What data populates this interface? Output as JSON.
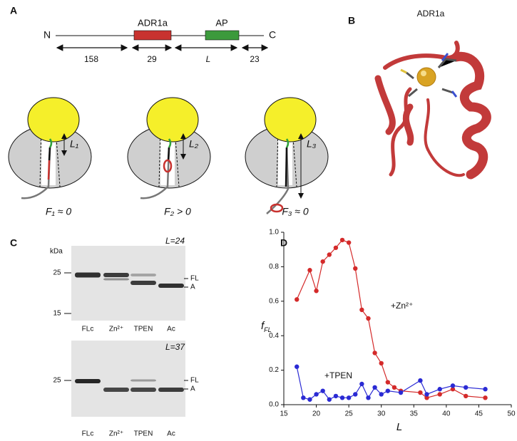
{
  "panel_a": {
    "label": "A",
    "n_term": "N",
    "c_term": "C",
    "domain_1": "ADR1a",
    "domain_2": "AP",
    "lengths": [
      "158",
      "29",
      "L",
      "23"
    ],
    "tunnel_labels": [
      "L₁",
      "L₂",
      "L₃"
    ],
    "force_labels": [
      "F₁ ≈ 0",
      "F₂ > 0",
      "F₃ ≈ 0"
    ]
  },
  "panel_b": {
    "label": "B",
    "title": "ADR1a"
  },
  "panel_c": {
    "label": "C",
    "unit": "kDa",
    "gels": [
      {
        "title": "L=24",
        "markers": [
          "25",
          "15"
        ],
        "bands": [
          "FL",
          "A"
        ],
        "lanes": [
          "FLc",
          "Zn²⁺",
          "TPEN",
          "Ac"
        ]
      },
      {
        "title": "L=37",
        "markers": [
          "25"
        ],
        "bands": [
          "FL",
          "A"
        ],
        "lanes": [
          "FLc",
          "Zn²⁺",
          "TPEN",
          "Ac"
        ]
      }
    ]
  },
  "panel_d": {
    "label": "D"
  },
  "chart_data": {
    "type": "line",
    "x_label": "L",
    "y_label": {
      "main": "f",
      "sub": "FL"
    },
    "xlim": [
      15,
      50
    ],
    "xticks": [
      15,
      20,
      25,
      30,
      35,
      40,
      45,
      50
    ],
    "ylim": [
      0,
      1.0
    ],
    "yticks": [
      {
        "value": 0,
        "label": "0.0"
      },
      0.2,
      0.4,
      0.6,
      0.8,
      {
        "value": 1.0,
        "label": "1.0"
      }
    ],
    "annotations": [
      "+Zn²⁺",
      "+TPEN"
    ],
    "series": [
      {
        "name": "+Zn²⁺",
        "color": "#d42a2a",
        "x": [
          17,
          19,
          20,
          21,
          22,
          23,
          24,
          25,
          26,
          27,
          28,
          29,
          30,
          31,
          32,
          33,
          36,
          37,
          39,
          41,
          43,
          46
        ],
        "values": [
          0.61,
          0.78,
          0.66,
          0.83,
          0.87,
          0.91,
          0.955,
          0.94,
          0.79,
          0.55,
          0.5,
          0.3,
          0.24,
          0.13,
          0.1,
          0.08,
          0.07,
          0.04,
          0.06,
          0.09,
          0.05,
          0.04
        ]
      },
      {
        "name": "+TPEN",
        "color": "#2a2ad4",
        "x": [
          17,
          18,
          19,
          20,
          21,
          22,
          23,
          24,
          25,
          26,
          27,
          28,
          29,
          30,
          31,
          33,
          36,
          37,
          39,
          41,
          43,
          46
        ],
        "values": [
          0.22,
          0.04,
          0.03,
          0.06,
          0.08,
          0.03,
          0.05,
          0.04,
          0.04,
          0.06,
          0.12,
          0.04,
          0.1,
          0.06,
          0.08,
          0.07,
          0.14,
          0.06,
          0.09,
          0.11,
          0.1,
          0.09
        ]
      }
    ]
  }
}
